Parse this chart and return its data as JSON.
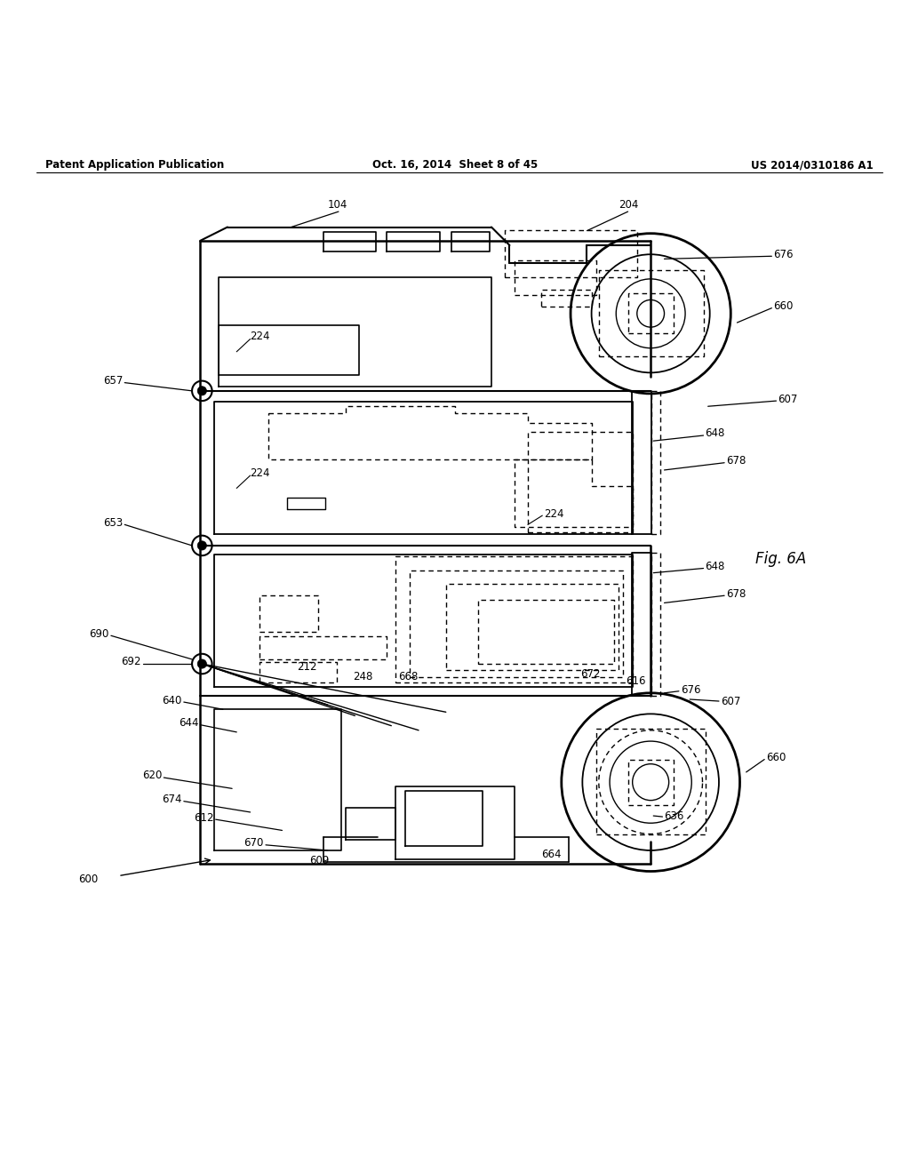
{
  "title_left": "Patent Application Publication",
  "title_center": "Oct. 16, 2014  Sheet 8 of 45",
  "title_right": "US 2014/0310186 A1",
  "fig_label": "Fig. 6A",
  "bg_color": "#ffffff",
  "line_color": "#000000"
}
